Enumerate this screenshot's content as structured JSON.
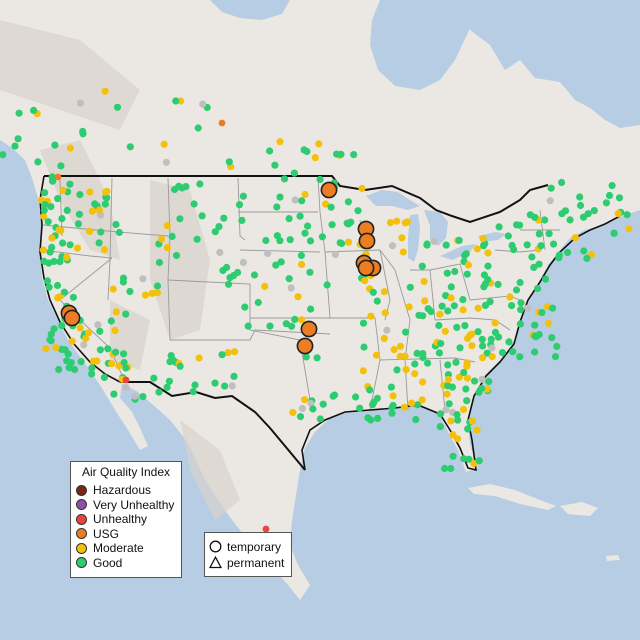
{
  "legend": {
    "title": "Air Quality Index",
    "categories": [
      {
        "label": "Hazardous",
        "color": "#7e2518"
      },
      {
        "label": "Very Unhealthy",
        "color": "#8f4fa8"
      },
      {
        "label": "Unhealthy",
        "color": "#e8453c"
      },
      {
        "label": "USG",
        "color": "#ec7d22"
      },
      {
        "label": "Moderate",
        "color": "#f3c10c"
      },
      {
        "label": "Good",
        "color": "#2ecc71"
      }
    ]
  },
  "monitor_types": [
    {
      "label": "temporary",
      "symbol": "circle-icon"
    },
    {
      "label": "permanent",
      "symbol": "triangle-icon"
    }
  ],
  "colors": {
    "water": "#b6cde3",
    "land": "#ebe8e3",
    "land_dark": "#d8d3cc",
    "state_border": "#9a9a9a",
    "national_border": "#111111",
    "no_data": "#bfbfbf"
  }
}
